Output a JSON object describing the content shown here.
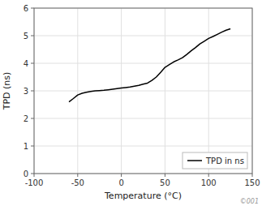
{
  "chart_data": {
    "type": "line",
    "xlabel": "Temperature (°C)",
    "ylabel": "TPD (ns)",
    "x": [
      -60,
      -55,
      -50,
      -45,
      -40,
      -35,
      -30,
      -25,
      -20,
      -15,
      -10,
      -5,
      0,
      5,
      10,
      15,
      20,
      25,
      30,
      35,
      40,
      45,
      50,
      55,
      60,
      65,
      70,
      75,
      80,
      85,
      90,
      95,
      100,
      105,
      110,
      115,
      120,
      125
    ],
    "series": [
      {
        "name": "TPD in ns",
        "color": "#000000",
        "values": [
          2.6,
          2.72,
          2.85,
          2.91,
          2.95,
          2.98,
          3.0,
          3.01,
          3.02,
          3.04,
          3.06,
          3.08,
          3.1,
          3.12,
          3.14,
          3.17,
          3.2,
          3.24,
          3.28,
          3.38,
          3.5,
          3.67,
          3.85,
          3.95,
          4.05,
          4.12,
          4.2,
          4.32,
          4.45,
          4.57,
          4.7,
          4.8,
          4.9,
          4.97,
          5.05,
          5.13,
          5.2,
          5.25
        ]
      }
    ],
    "xlim": [
      -100,
      150
    ],
    "ylim": [
      0,
      6
    ],
    "xticks": [
      -100,
      -50,
      0,
      50,
      100,
      150
    ],
    "yticks": [
      0,
      1,
      2,
      3,
      4,
      5,
      6
    ],
    "grid": true,
    "legend": "lower right",
    "annotations": [
      "©001"
    ]
  }
}
